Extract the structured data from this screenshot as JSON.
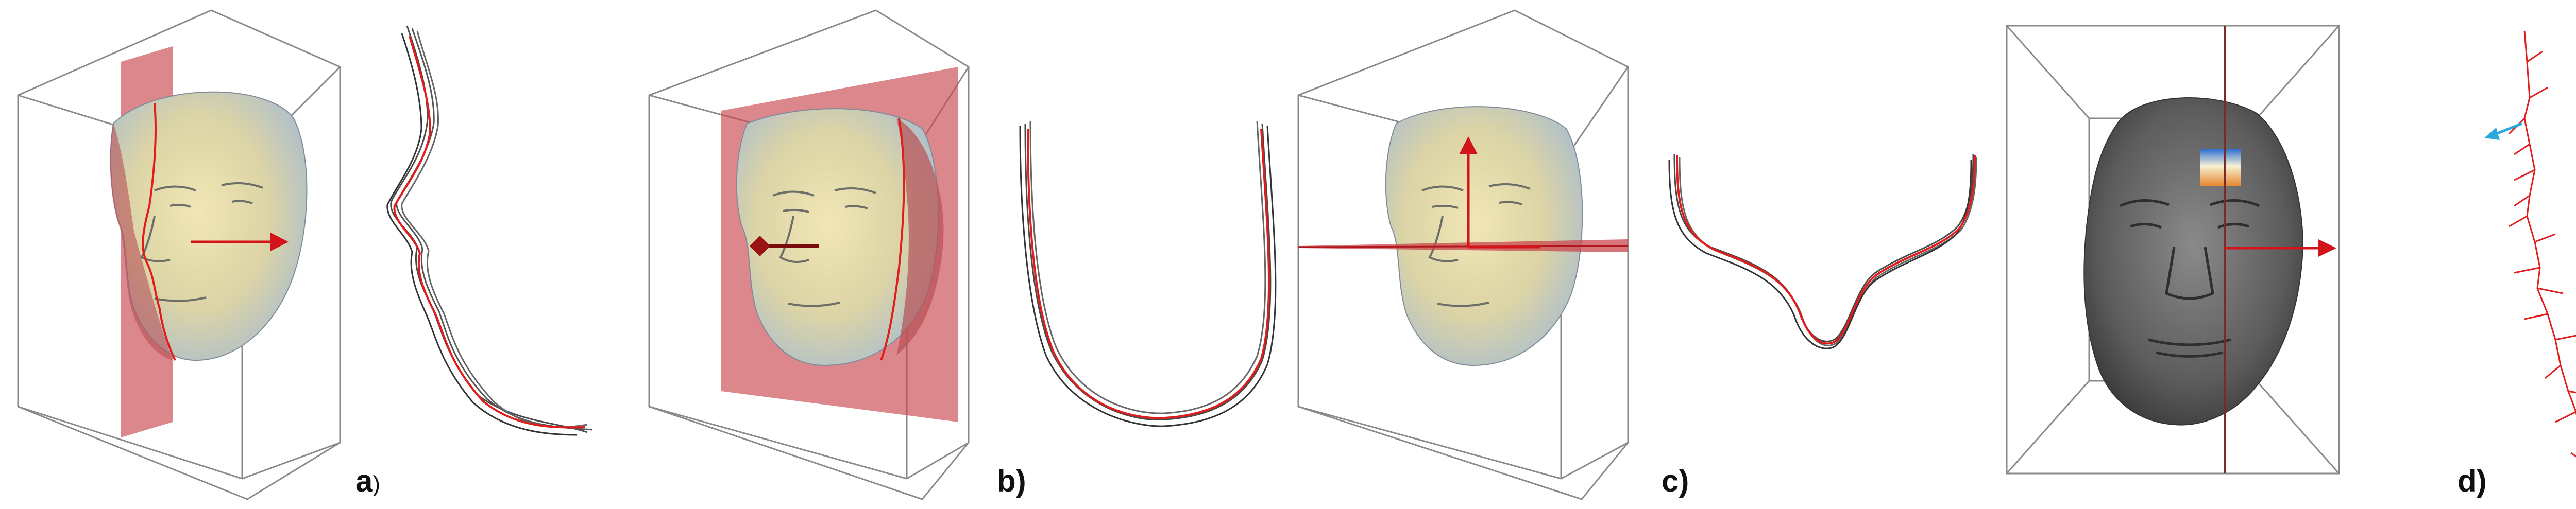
{
  "figure": {
    "panels": [
      {
        "id": "a",
        "label": "a",
        "paren": ")"
      },
      {
        "id": "b",
        "label": "b)",
        "paren": ""
      },
      {
        "id": "c",
        "label": "c)",
        "paren": ""
      },
      {
        "id": "d",
        "label": "d)",
        "paren": ""
      }
    ],
    "colors": {
      "box": "#8a8a8a",
      "plane": "#c9474d",
      "axis": "#d3141a",
      "profile_red": "#e21b1b",
      "profile_gray": "#4a4a4a",
      "skin_light": "#e7dfb0",
      "skin_blue": "#a8bccf",
      "gray_face": "#555555",
      "cyan_vector": "#2aa8dc"
    }
  }
}
